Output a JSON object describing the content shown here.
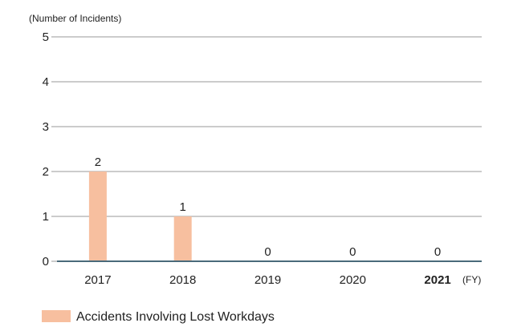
{
  "chart_data": {
    "type": "bar",
    "ylabel": "(Number of Incidents)",
    "x_unit": "(FY)",
    "categories": [
      "2017",
      "2018",
      "2019",
      "2020",
      "2021"
    ],
    "highlight_category": "2021",
    "series": [
      {
        "name": "Accidents Involving Lost Workdays",
        "values": [
          2,
          1,
          0,
          0,
          0
        ],
        "color": "#f7bf9f"
      }
    ],
    "data_labels": [
      "2",
      "1",
      "0",
      "0",
      "0"
    ],
    "y_ticks": [
      "0",
      "1",
      "2",
      "3",
      "4",
      "5"
    ],
    "ylim": [
      0,
      5
    ],
    "grid": true,
    "legend_position": "bottom-left",
    "axis_color": "#4a6a7a",
    "grid_color": "#999999"
  }
}
